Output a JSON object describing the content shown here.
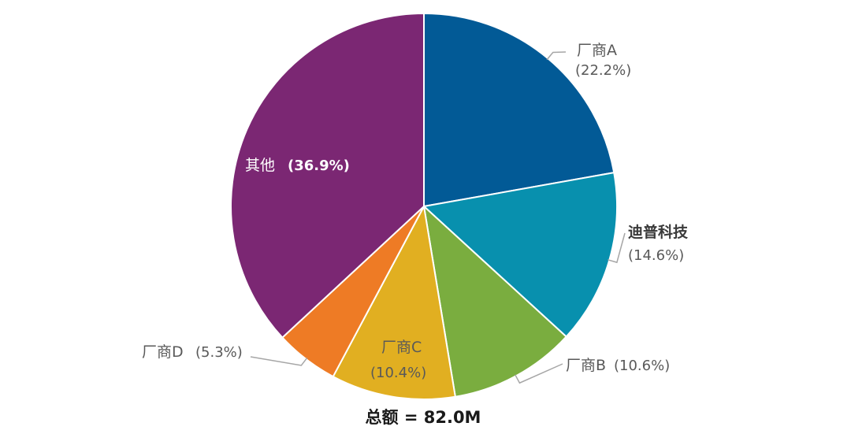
{
  "chart_data": {
    "type": "pie",
    "total_label": "总额 = 82.0M",
    "slices": [
      {
        "name": "厂商A",
        "percent": 22.2,
        "percent_label": "(22.2%)",
        "color": "#025a96"
      },
      {
        "name": "迪普科技",
        "percent": 14.6,
        "percent_label": "(14.6%)",
        "color": "#0890ae"
      },
      {
        "name": "厂商B",
        "percent": 10.6,
        "percent_label": "(10.6%)",
        "color": "#7aad3f"
      },
      {
        "name": "厂商C",
        "percent": 10.4,
        "percent_label": "(10.4%)",
        "color": "#e1af21"
      },
      {
        "name": "厂商D",
        "percent": 5.3,
        "percent_label": "(5.3%)",
        "color": "#ee7b25"
      },
      {
        "name": "其他",
        "percent": 36.9,
        "percent_label": "(36.9%)",
        "color": "#7b2773"
      }
    ]
  }
}
